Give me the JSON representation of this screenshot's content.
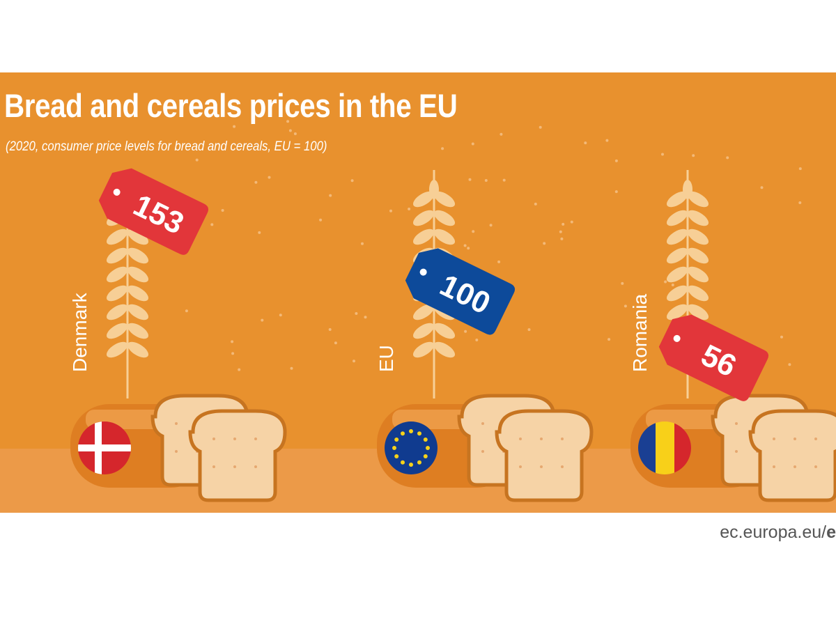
{
  "title": "Bread and cereals prices in the EU",
  "subtitle": "(2020, consumer price levels for bread and cereals, EU = 100)",
  "source": {
    "text": "ec.europa.eu/",
    "bold": "e"
  },
  "colors": {
    "background": "#e8912e",
    "tag_above_eu": "#e2363a",
    "tag_eu": "#0d4a9a",
    "tag_below_eu": "#e2363a",
    "wheat": "#f7cf96",
    "bread_slice": "#f6d3a6"
  },
  "chart_data": {
    "type": "bar",
    "title": "Bread and cereals prices in the EU",
    "subtitle": "(2020, consumer price levels for bread and cereals, EU = 100)",
    "categories": [
      "Denmark",
      "EU",
      "Romania"
    ],
    "values": [
      153,
      100,
      56
    ],
    "icons": [
      "flag-denmark",
      "flag-eu",
      "flag-romania"
    ],
    "tag_colors": [
      "#e2363a",
      "#0d4a9a",
      "#e2363a"
    ],
    "reference": {
      "label": "EU",
      "value": 100
    },
    "ylim": [
      0,
      160
    ],
    "xlabel": "",
    "ylabel": ""
  }
}
